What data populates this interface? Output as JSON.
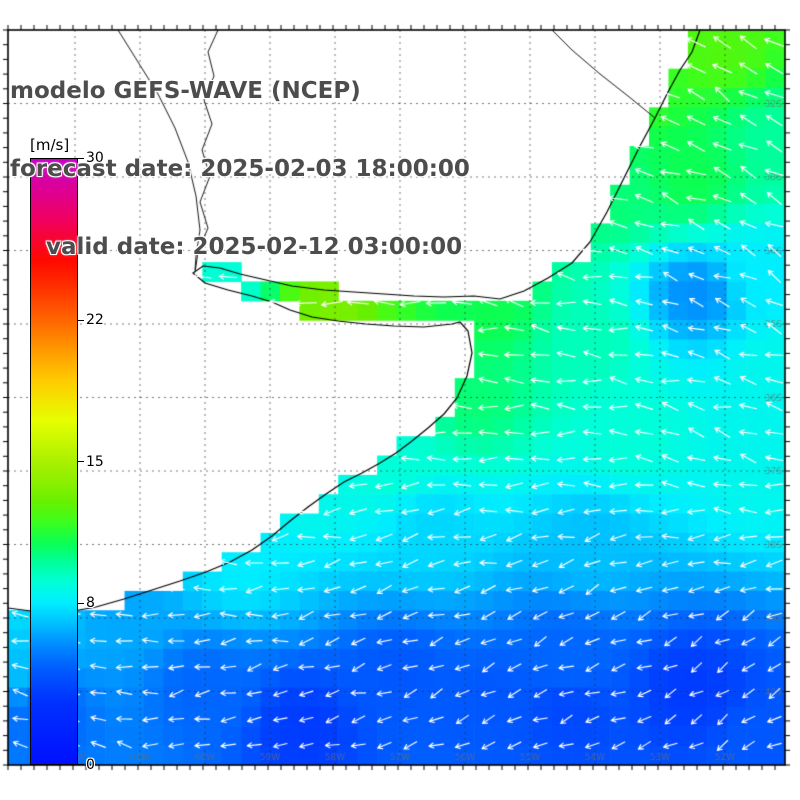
{
  "header": {
    "line1": "modelo GEFS-WAVE (NCEP)",
    "line2": "forecast date: 2025-02-03 18:00:00",
    "line3": "valid date: 2025-02-12 03:00:00"
  },
  "colorbar": {
    "unit_label": "[m/s]",
    "min": 0,
    "max": 30,
    "tick_labels": [
      "30",
      "22",
      "15",
      "8",
      "0"
    ],
    "tick_values": [
      30,
      22,
      15,
      8,
      0
    ],
    "stops": [
      {
        "v": 0,
        "c": "#0010ff"
      },
      {
        "v": 3,
        "c": "#0030ff"
      },
      {
        "v": 4,
        "c": "#0048ff"
      },
      {
        "v": 5,
        "c": "#0066ff"
      },
      {
        "v": 6,
        "c": "#0090ff"
      },
      {
        "v": 7,
        "c": "#00c0ff"
      },
      {
        "v": 8,
        "c": "#00eeff"
      },
      {
        "v": 9,
        "c": "#00ffd8"
      },
      {
        "v": 10,
        "c": "#00ff9c"
      },
      {
        "v": 11,
        "c": "#0cff50"
      },
      {
        "v": 12,
        "c": "#3cff1e"
      },
      {
        "v": 13,
        "c": "#66f000"
      },
      {
        "v": 14,
        "c": "#8cf000"
      },
      {
        "v": 15,
        "c": "#aaf000"
      },
      {
        "v": 17,
        "c": "#e6ff00"
      },
      {
        "v": 19,
        "c": "#ffcc00"
      },
      {
        "v": 21,
        "c": "#ff8800"
      },
      {
        "v": 23,
        "c": "#ff4400"
      },
      {
        "v": 25,
        "c": "#ff0800"
      },
      {
        "v": 27,
        "c": "#f00060"
      },
      {
        "v": 30,
        "c": "#c800c8"
      }
    ]
  },
  "colors": {
    "title_gray": "#4d4d4d",
    "frame": "#000000",
    "coast": "#000000",
    "arrow": "#ffffff",
    "grid": "#2a2a2a",
    "axis_label": "#6e6e6e",
    "land": "#ffffff"
  },
  "map": {
    "axis": {
      "lon_labels": [
        "62W",
        "61W",
        "60W",
        "59W",
        "58W",
        "57W",
        "56W",
        "55W",
        "54W",
        "53W",
        "52W"
      ],
      "lat_labels": [
        "32S",
        "33S",
        "34S",
        "35S",
        "36S",
        "37S",
        "38S",
        "39S",
        "40S"
      ]
    },
    "coastline": [
      [
        692,
        0
      ],
      [
        684,
        22
      ],
      [
        672,
        40
      ],
      [
        660,
        62
      ],
      [
        647,
        88
      ],
      [
        632,
        116
      ],
      [
        616,
        148
      ],
      [
        599,
        182
      ],
      [
        582,
        212
      ],
      [
        564,
        233
      ],
      [
        540,
        248
      ],
      [
        516,
        261
      ],
      [
        492,
        269
      ],
      [
        466,
        266
      ],
      [
        436,
        267
      ],
      [
        406,
        266
      ],
      [
        376,
        264
      ],
      [
        346,
        262
      ],
      [
        316,
        260
      ],
      [
        284,
        256
      ],
      [
        258,
        250
      ],
      [
        232,
        244
      ],
      [
        212,
        238
      ],
      [
        195,
        236
      ],
      [
        185,
        243
      ],
      [
        197,
        253
      ],
      [
        220,
        260
      ],
      [
        244,
        266
      ],
      [
        264,
        272
      ],
      [
        282,
        280
      ],
      [
        304,
        287
      ],
      [
        330,
        291
      ],
      [
        358,
        294
      ],
      [
        386,
        296
      ],
      [
        416,
        297
      ],
      [
        444,
        294
      ],
      [
        452,
        292
      ],
      [
        460,
        301
      ],
      [
        464,
        323
      ],
      [
        459,
        346
      ],
      [
        449,
        368
      ],
      [
        436,
        384
      ],
      [
        420,
        398
      ],
      [
        404,
        411
      ],
      [
        388,
        423
      ],
      [
        372,
        433
      ],
      [
        354,
        443
      ],
      [
        336,
        452
      ],
      [
        318,
        464
      ],
      [
        300,
        477
      ],
      [
        282,
        491
      ],
      [
        264,
        506
      ],
      [
        244,
        520
      ],
      [
        222,
        532
      ],
      [
        198,
        542
      ],
      [
        172,
        551
      ],
      [
        144,
        560
      ],
      [
        116,
        569
      ],
      [
        88,
        577
      ],
      [
        60,
        582
      ],
      [
        30,
        582
      ],
      [
        0,
        578
      ]
    ],
    "inland_borders": [
      [
        [
          210,
          0
        ],
        [
          200,
          22
        ],
        [
          206,
          46
        ],
        [
          196,
          70
        ],
        [
          204,
          94
        ],
        [
          194,
          120
        ],
        [
          202,
          146
        ],
        [
          192,
          172
        ],
        [
          200,
          198
        ],
        [
          190,
          222
        ],
        [
          188,
          236
        ],
        [
          187,
          242
        ]
      ],
      [
        [
          110,
          0
        ],
        [
          130,
          32
        ],
        [
          150,
          64
        ],
        [
          167,
          98
        ],
        [
          180,
          132
        ],
        [
          188,
          166
        ],
        [
          192,
          200
        ],
        [
          188,
          226
        ],
        [
          187,
          240
        ]
      ],
      [
        [
          544,
          0
        ],
        [
          564,
          20
        ],
        [
          592,
          44
        ],
        [
          620,
          66
        ],
        [
          647,
          88
        ]
      ]
    ],
    "wind_field": {
      "speed_points": [
        [
          0.92,
          0.02,
          12.5
        ],
        [
          0.8,
          0.08,
          12
        ],
        [
          0.99,
          0.15,
          10
        ],
        [
          0.88,
          0.2,
          11
        ],
        [
          0.78,
          0.22,
          10.5
        ],
        [
          0.97,
          0.33,
          8
        ],
        [
          0.885,
          0.36,
          6
        ],
        [
          0.99,
          0.45,
          8.5
        ],
        [
          0.75,
          0.42,
          9.5
        ],
        [
          0.62,
          0.38,
          11
        ],
        [
          0.42,
          0.37,
          13.5
        ],
        [
          0.36,
          0.42,
          13.5
        ],
        [
          0.29,
          0.34,
          9
        ],
        [
          0.48,
          0.45,
          12
        ],
        [
          0.6,
          0.5,
          10.5
        ],
        [
          0.8,
          0.55,
          9
        ],
        [
          0.97,
          0.6,
          8.5
        ],
        [
          0.5,
          0.58,
          9
        ],
        [
          0.38,
          0.62,
          8.5
        ],
        [
          0.55,
          0.68,
          7.5
        ],
        [
          0.75,
          0.7,
          7
        ],
        [
          0.3,
          0.72,
          8
        ],
        [
          0.15,
          0.8,
          6.5
        ],
        [
          0.02,
          0.8,
          7.5
        ],
        [
          0.01,
          0.86,
          7
        ],
        [
          0.05,
          0.93,
          5
        ],
        [
          0.25,
          0.9,
          5
        ],
        [
          0.38,
          0.95,
          3.5
        ],
        [
          0.5,
          0.88,
          4.5
        ],
        [
          0.62,
          0.92,
          4.5
        ],
        [
          0.72,
          0.93,
          4
        ],
        [
          0.72,
          0.85,
          5
        ],
        [
          0.88,
          0.9,
          3.5
        ],
        [
          0.97,
          0.97,
          4.5
        ]
      ],
      "direction_points": [
        [
          0.9,
          0.05,
          -0.75,
          -0.65
        ],
        [
          0.99,
          0.3,
          -0.8,
          -0.6
        ],
        [
          0.8,
          0.2,
          -0.85,
          -0.5
        ],
        [
          0.6,
          0.35,
          -0.95,
          -0.3
        ],
        [
          0.42,
          0.4,
          -1,
          -0.15
        ],
        [
          0.3,
          0.35,
          -1,
          -0.1
        ],
        [
          0.6,
          0.55,
          -1,
          -0.15
        ],
        [
          0.9,
          0.55,
          -0.9,
          -0.4
        ],
        [
          0.4,
          0.6,
          -1,
          0
        ],
        [
          0.2,
          0.75,
          -0.95,
          -0.2
        ],
        [
          0.5,
          0.75,
          -0.95,
          0.2
        ],
        [
          0.75,
          0.8,
          -0.9,
          0.3
        ],
        [
          0.95,
          0.9,
          -0.85,
          0.4
        ],
        [
          0.3,
          0.9,
          -0.9,
          0.1
        ],
        [
          0.05,
          0.95,
          -0.8,
          -0.45
        ],
        [
          0.55,
          0.95,
          -0.9,
          0.25
        ]
      ]
    }
  }
}
